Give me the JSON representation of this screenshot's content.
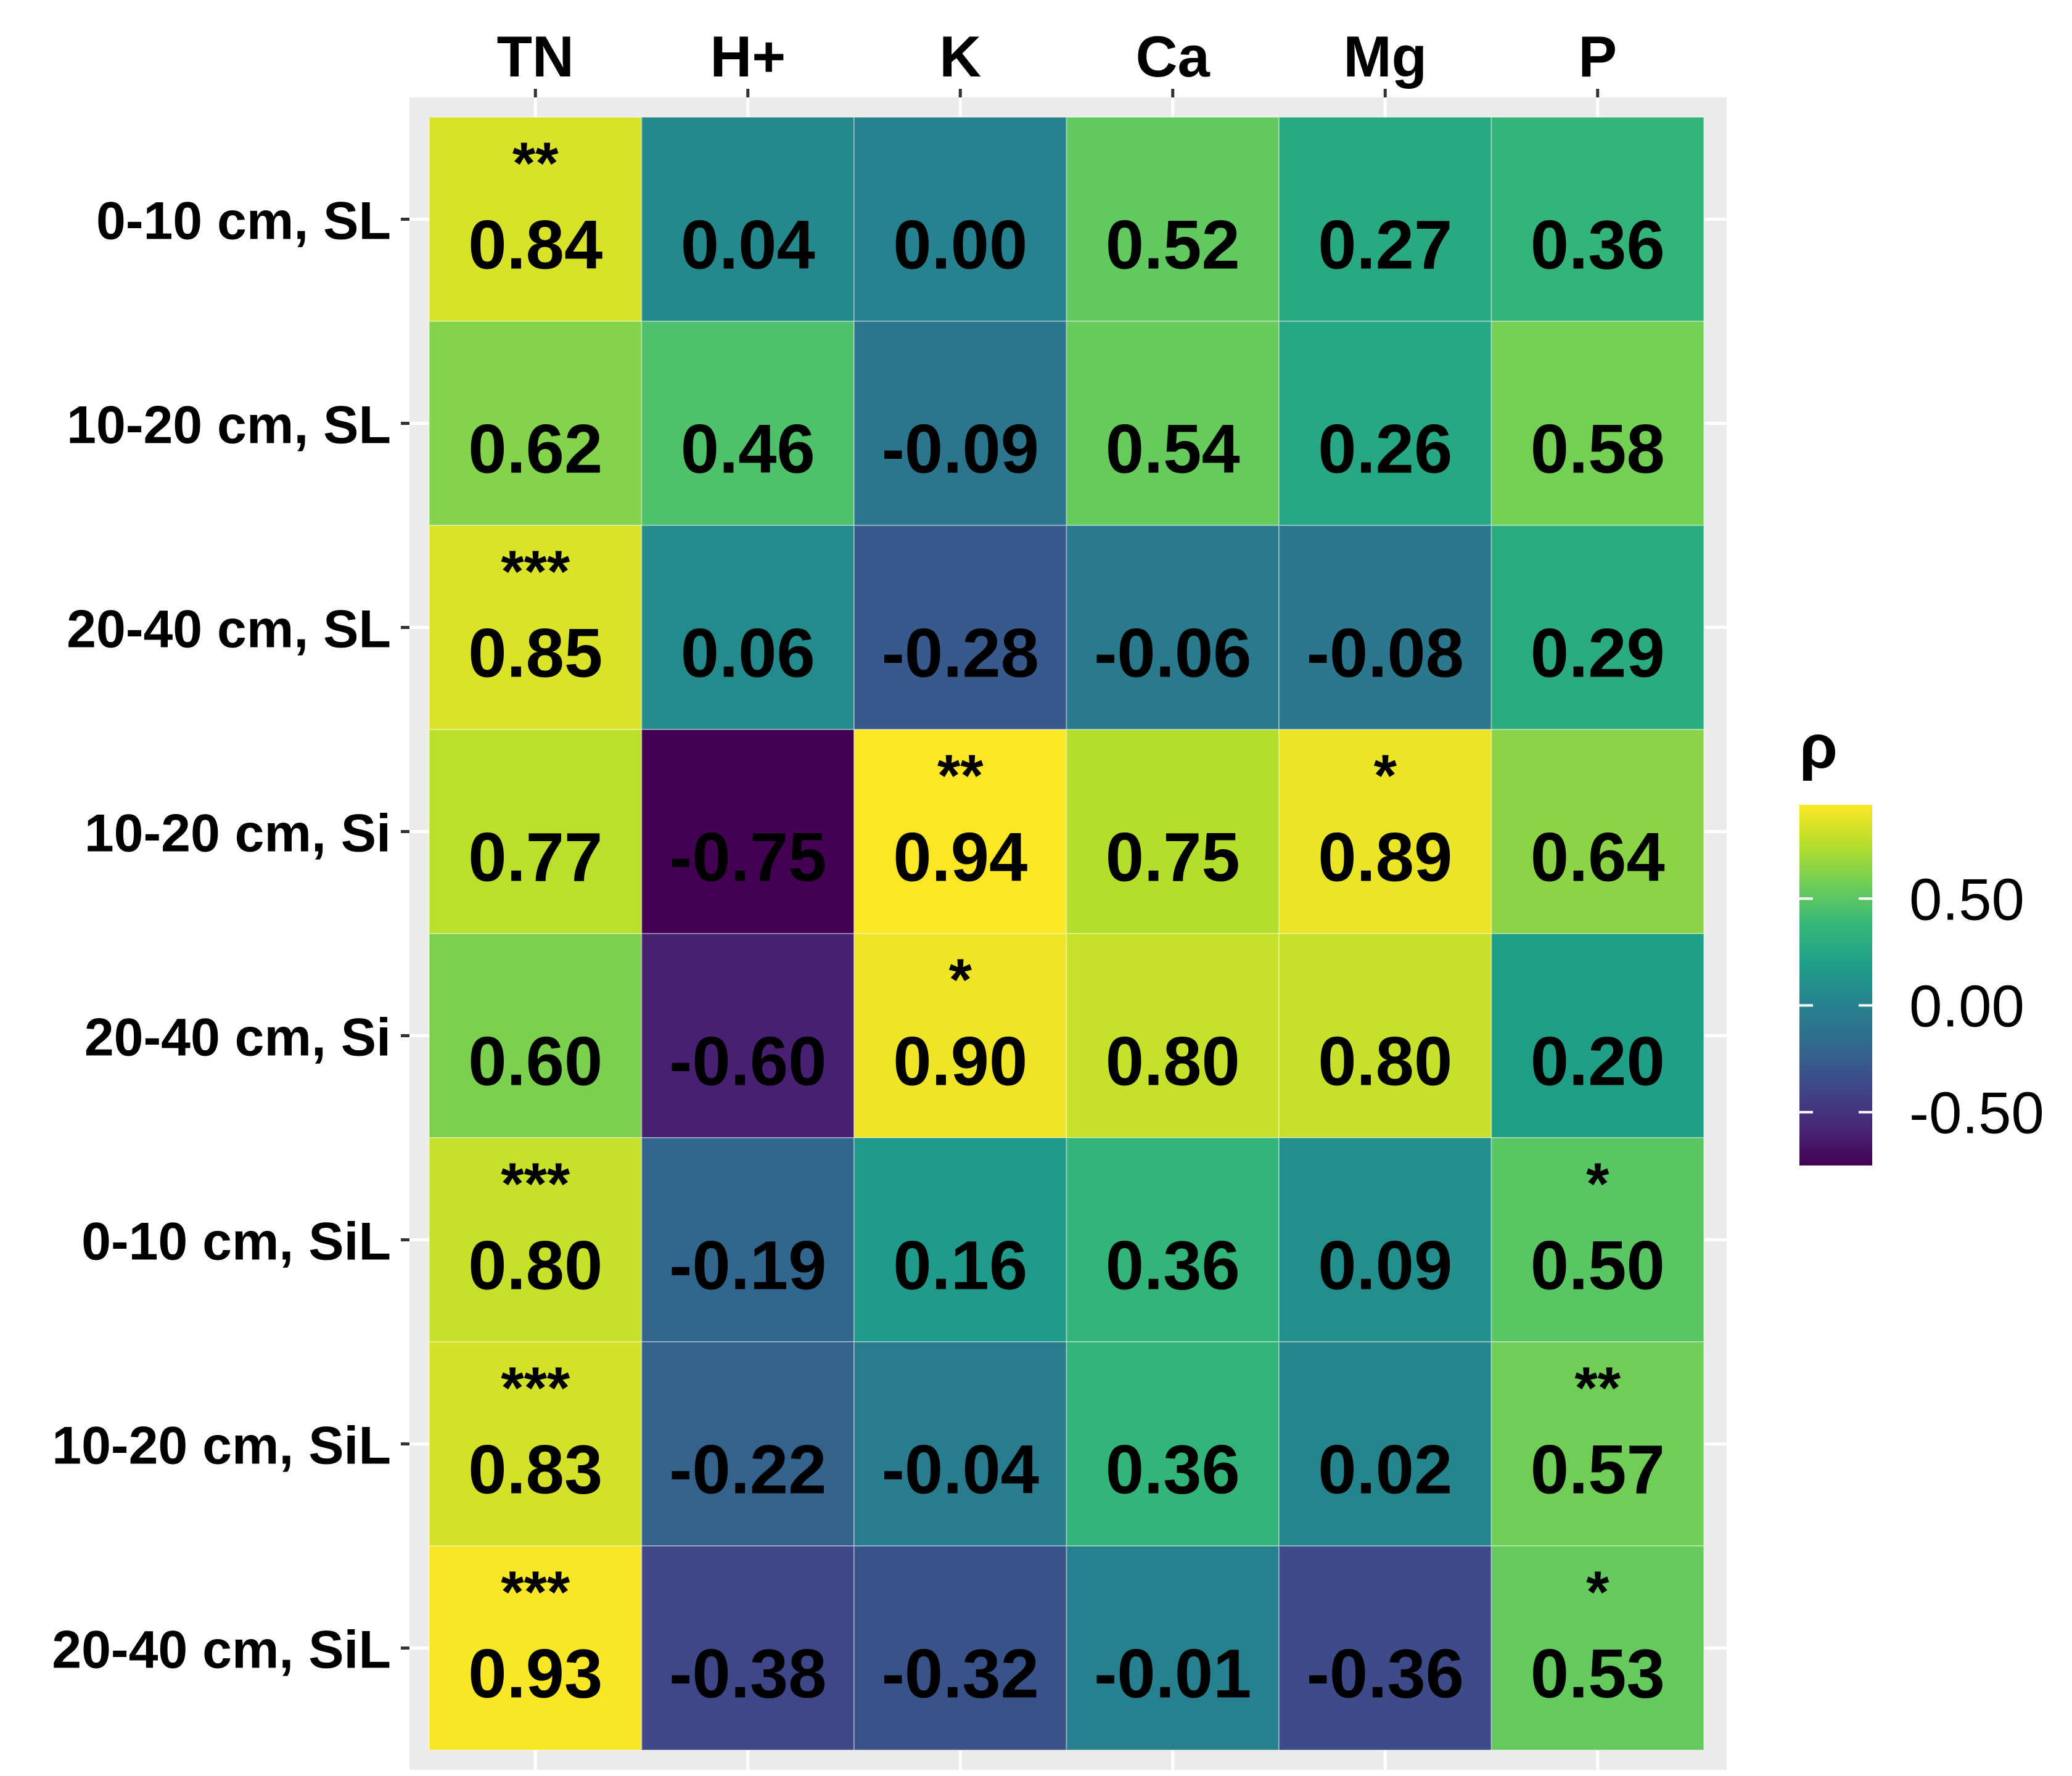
{
  "chart_data": {
    "type": "heatmap",
    "columns": [
      "TN",
      "H+",
      "K",
      "Ca",
      "Mg",
      "P"
    ],
    "rows": [
      "0-10 cm, SL",
      "10-20 cm, SL",
      "20-40 cm, SL",
      "10-20 cm, Si",
      "20-40 cm, Si",
      "0-10 cm, SiL",
      "10-20 cm, SiL",
      "20-40 cm, SiL"
    ],
    "values": [
      [
        0.84,
        0.04,
        0.0,
        0.52,
        0.27,
        0.36
      ],
      [
        0.62,
        0.46,
        -0.09,
        0.54,
        0.26,
        0.58
      ],
      [
        0.85,
        0.06,
        -0.28,
        -0.06,
        -0.08,
        0.29
      ],
      [
        0.77,
        -0.75,
        0.94,
        0.75,
        0.89,
        0.64
      ],
      [
        0.6,
        -0.6,
        0.9,
        0.8,
        0.8,
        0.2
      ],
      [
        0.8,
        -0.19,
        0.16,
        0.36,
        0.09,
        0.5
      ],
      [
        0.83,
        -0.22,
        -0.04,
        0.36,
        0.02,
        0.57
      ],
      [
        0.93,
        -0.38,
        -0.32,
        -0.01,
        -0.36,
        0.53
      ]
    ],
    "labels": [
      [
        "0.84",
        "0.04",
        "0.00",
        "0.52",
        "0.27",
        "0.36"
      ],
      [
        "0.62",
        "0.46",
        "-0.09",
        "0.54",
        "0.26",
        "0.58"
      ],
      [
        "0.85",
        "0.06",
        "-0.28",
        "-0.06",
        "-0.08",
        "0.29"
      ],
      [
        "0.77",
        "-0.75",
        "0.94",
        "0.75",
        "0.89",
        "0.64"
      ],
      [
        "0.60",
        "-0.60",
        "0.90",
        "0.80",
        "0.80",
        "0.20"
      ],
      [
        "0.80",
        "-0.19",
        "0.16",
        "0.36",
        "0.09",
        "0.50"
      ],
      [
        "0.83",
        "-0.22",
        "-0.04",
        "0.36",
        "0.02",
        "0.57"
      ],
      [
        "0.93",
        "-0.38",
        "-0.32",
        "-0.01",
        "-0.36",
        "0.53"
      ]
    ],
    "significance": [
      [
        "**",
        "",
        "",
        "",
        "",
        ""
      ],
      [
        "",
        "",
        "",
        "",
        "",
        ""
      ],
      [
        "***",
        "",
        "",
        "",
        "",
        ""
      ],
      [
        "",
        "",
        "**",
        "",
        "*",
        ""
      ],
      [
        "",
        "",
        "*",
        "",
        "",
        ""
      ],
      [
        "***",
        "",
        "",
        "",
        "",
        "*"
      ],
      [
        "***",
        "",
        "",
        "",
        "",
        "**"
      ],
      [
        "***",
        "",
        "",
        "",
        "",
        "*"
      ]
    ],
    "legend": {
      "title": "ρ",
      "ticks": [
        0.5,
        0.0,
        -0.5
      ],
      "tick_labels": [
        "0.50",
        "0.00",
        "-0.50"
      ],
      "range": [
        -0.75,
        0.94
      ],
      "colormap": [
        "#440154",
        "#482878",
        "#3e4989",
        "#31688e",
        "#26828e",
        "#1f9e89",
        "#35b779",
        "#6ece58",
        "#b5de2b",
        "#fde725"
      ],
      "placement": "right"
    },
    "panel_background": "#ebebeb",
    "grid_color": "#ffffff"
  }
}
